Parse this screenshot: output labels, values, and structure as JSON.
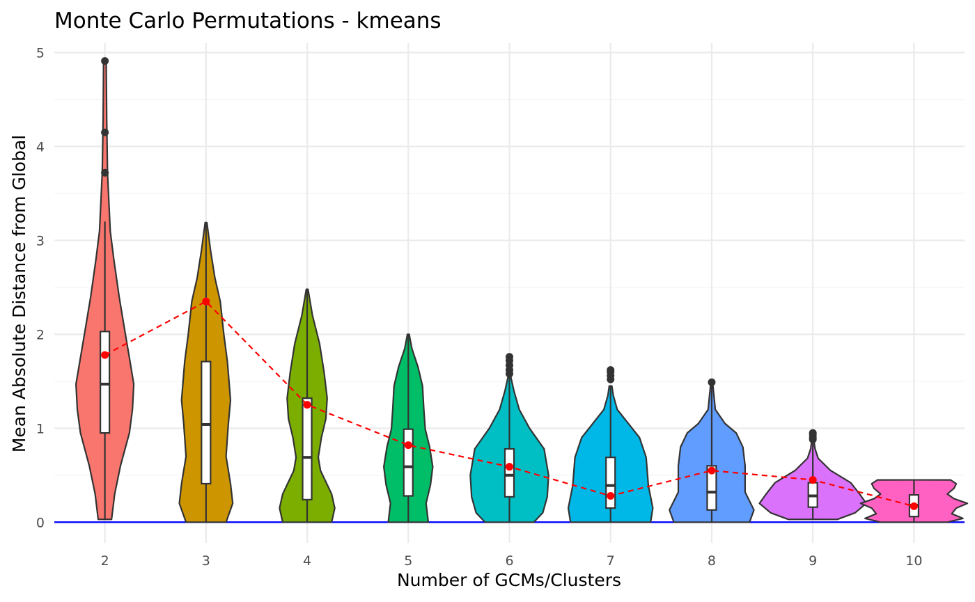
{
  "chart_data": {
    "type": "violin",
    "title": "Monte Carlo Permutations - kmeans",
    "xlabel": "Number of GCMs/Clusters",
    "ylabel": "Mean Absolute Distance from Global",
    "categories": [
      "2",
      "3",
      "4",
      "5",
      "6",
      "7",
      "8",
      "9",
      "10"
    ],
    "ylim": [
      -0.22,
      5.1
    ],
    "y_ticks": [
      "0",
      "1",
      "2",
      "3",
      "4",
      "5"
    ],
    "grid": true,
    "legend": "none",
    "reference_line": {
      "y": 0,
      "color": "#0000ff"
    },
    "mean_line": {
      "color": "#ff0000",
      "style": "dashed"
    },
    "groups": [
      {
        "category": "2",
        "color": "#f8766d",
        "min": 0.03,
        "q1": 0.95,
        "median": 1.47,
        "q3": 2.03,
        "max": 3.2,
        "mean": 1.78,
        "outliers": [
          3.72,
          4.15,
          4.91
        ],
        "density": [
          [
            0.03,
            0.15
          ],
          [
            0.3,
            0.22
          ],
          [
            0.6,
            0.35
          ],
          [
            0.95,
            0.55
          ],
          [
            1.2,
            0.62
          ],
          [
            1.47,
            0.65
          ],
          [
            1.75,
            0.55
          ],
          [
            2.03,
            0.45
          ],
          [
            2.4,
            0.32
          ],
          [
            2.8,
            0.2
          ],
          [
            3.1,
            0.12
          ],
          [
            3.72,
            0.06
          ],
          [
            4.3,
            0.04
          ],
          [
            4.91,
            0.03
          ]
        ]
      },
      {
        "category": "3",
        "color": "#cd9600",
        "min": 0.0,
        "q1": 0.41,
        "median": 1.04,
        "q3": 1.71,
        "max": 3.19,
        "mean": 2.35,
        "outliers": [],
        "density": [
          [
            0.0,
            0.45
          ],
          [
            0.2,
            0.6
          ],
          [
            0.41,
            0.55
          ],
          [
            0.7,
            0.45
          ],
          [
            1.04,
            0.5
          ],
          [
            1.3,
            0.55
          ],
          [
            1.71,
            0.48
          ],
          [
            2.0,
            0.4
          ],
          [
            2.35,
            0.32
          ],
          [
            2.6,
            0.2
          ],
          [
            2.9,
            0.1
          ],
          [
            3.19,
            0.02
          ]
        ]
      },
      {
        "category": "4",
        "color": "#7cae00",
        "min": 0.0,
        "q1": 0.24,
        "median": 0.69,
        "q3": 1.32,
        "max": 2.48,
        "mean": 1.25,
        "outliers": [],
        "density": [
          [
            0.0,
            0.55
          ],
          [
            0.15,
            0.62
          ],
          [
            0.3,
            0.55
          ],
          [
            0.55,
            0.3
          ],
          [
            0.69,
            0.25
          ],
          [
            0.9,
            0.32
          ],
          [
            1.1,
            0.42
          ],
          [
            1.32,
            0.45
          ],
          [
            1.6,
            0.38
          ],
          [
            1.9,
            0.28
          ],
          [
            2.2,
            0.12
          ],
          [
            2.48,
            0.02
          ]
        ]
      },
      {
        "category": "5",
        "color": "#00be67",
        "min": 0.0,
        "q1": 0.28,
        "median": 0.59,
        "q3": 0.99,
        "max": 2.0,
        "mean": 0.82,
        "outliers": [],
        "density": [
          [
            0.0,
            0.45
          ],
          [
            0.2,
            0.4
          ],
          [
            0.4,
            0.5
          ],
          [
            0.59,
            0.55
          ],
          [
            0.8,
            0.48
          ],
          [
            0.99,
            0.38
          ],
          [
            1.2,
            0.35
          ],
          [
            1.45,
            0.32
          ],
          [
            1.65,
            0.22
          ],
          [
            1.85,
            0.08
          ],
          [
            2.0,
            0.02
          ]
        ]
      },
      {
        "category": "6",
        "color": "#00bfc4",
        "min": 0.0,
        "q1": 0.27,
        "median": 0.5,
        "q3": 0.78,
        "max": 1.55,
        "mean": 0.59,
        "outliers": [
          1.58,
          1.62,
          1.67,
          1.72,
          1.76
        ],
        "density": [
          [
            0.0,
            0.55
          ],
          [
            0.1,
            0.75
          ],
          [
            0.27,
            0.85
          ],
          [
            0.5,
            0.88
          ],
          [
            0.78,
            0.78
          ],
          [
            1.0,
            0.45
          ],
          [
            1.2,
            0.22
          ],
          [
            1.4,
            0.1
          ],
          [
            1.55,
            0.03
          ]
        ]
      },
      {
        "category": "7",
        "color": "#00b8e7",
        "min": 0.0,
        "q1": 0.15,
        "median": 0.39,
        "q3": 0.69,
        "max": 1.45,
        "mean": 0.28,
        "outliers": [
          1.52,
          1.56,
          1.6,
          1.62
        ],
        "density": [
          [
            0.0,
            0.9
          ],
          [
            0.15,
            0.95
          ],
          [
            0.39,
            0.85
          ],
          [
            0.69,
            0.8
          ],
          [
            0.9,
            0.65
          ],
          [
            1.05,
            0.4
          ],
          [
            1.2,
            0.15
          ],
          [
            1.35,
            0.06
          ],
          [
            1.45,
            0.03
          ]
        ]
      },
      {
        "category": "8",
        "color": "#619cff",
        "min": 0.0,
        "q1": 0.13,
        "median": 0.32,
        "q3": 0.6,
        "max": 1.49,
        "mean": 0.55,
        "outliers": [
          1.49
        ],
        "density": [
          [
            0.0,
            0.85
          ],
          [
            0.13,
            0.95
          ],
          [
            0.32,
            0.75
          ],
          [
            0.6,
            0.75
          ],
          [
            0.8,
            0.7
          ],
          [
            0.95,
            0.55
          ],
          [
            1.05,
            0.3
          ],
          [
            1.2,
            0.08
          ],
          [
            1.49,
            0.02
          ]
        ]
      },
      {
        "category": "9",
        "color": "#db72fb",
        "min": 0.03,
        "q1": 0.16,
        "median": 0.28,
        "q3": 0.42,
        "max": 0.88,
        "mean": 0.45,
        "outliers": [
          0.88,
          0.9,
          0.93,
          0.95
        ],
        "density": [
          [
            0.03,
            0.55
          ],
          [
            0.1,
            0.95
          ],
          [
            0.2,
            1.2
          ],
          [
            0.3,
            1.05
          ],
          [
            0.42,
            0.85
          ],
          [
            0.55,
            0.4
          ],
          [
            0.68,
            0.12
          ],
          [
            0.78,
            0.05
          ],
          [
            0.88,
            0.02
          ]
        ]
      },
      {
        "category": "10",
        "color": "#ff61c3",
        "min": 0.0,
        "q1": 0.06,
        "median": 0.18,
        "q3": 0.29,
        "max": 0.45,
        "mean": 0.17,
        "outliers": [],
        "density": [
          [
            0.0,
            0.75
          ],
          [
            0.04,
            1.1
          ],
          [
            0.09,
            0.85
          ],
          [
            0.15,
            0.95
          ],
          [
            0.2,
            1.2
          ],
          [
            0.25,
            0.9
          ],
          [
            0.3,
            0.75
          ],
          [
            0.36,
            0.9
          ],
          [
            0.41,
            0.95
          ],
          [
            0.45,
            0.82
          ]
        ]
      }
    ]
  }
}
